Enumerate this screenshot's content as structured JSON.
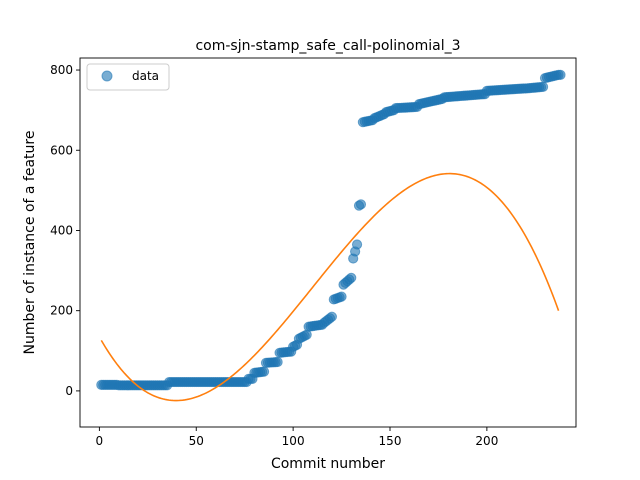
{
  "chart_data": {
    "type": "scatter",
    "title": "com-sjn-stamp_safe_call-polinomial_3",
    "xlabel": "Commit number",
    "ylabel": "Number of instance of a feature",
    "xlim": [
      -10,
      246
    ],
    "ylim": [
      -90,
      830
    ],
    "xticks": [
      0,
      50,
      100,
      150,
      200
    ],
    "yticks": [
      0,
      200,
      400,
      600,
      800
    ],
    "legend_position": "top-left",
    "grid": false,
    "colors": {
      "data": "#1f77b4",
      "fit": "#ff7f0e"
    },
    "series": [
      {
        "name": "data",
        "kind": "markers",
        "segments": [
          [
            1,
            10,
            15,
            15
          ],
          [
            10,
            36,
            14,
            14
          ],
          [
            36,
            77,
            22,
            22
          ],
          [
            77,
            80,
            30,
            30
          ],
          [
            80,
            86,
            45,
            48
          ],
          [
            86,
            93,
            70,
            72
          ],
          [
            93,
            100,
            95,
            98
          ],
          [
            100,
            103,
            110,
            115
          ],
          [
            103,
            108,
            130,
            140
          ],
          [
            108,
            116,
            160,
            165
          ],
          [
            116,
            121,
            170,
            185
          ],
          [
            121,
            126,
            228,
            235
          ],
          [
            126,
            131,
            265,
            282
          ],
          [
            131,
            134,
            330,
            365
          ],
          [
            134,
            136,
            462,
            465
          ],
          [
            136,
            142,
            670,
            675
          ],
          [
            142,
            148,
            680,
            690
          ],
          [
            148,
            153,
            695,
            700
          ],
          [
            153,
            165,
            705,
            708
          ],
          [
            165,
            178,
            715,
            728
          ],
          [
            178,
            200,
            732,
            740
          ],
          [
            200,
            220,
            748,
            754
          ],
          [
            220,
            230,
            754,
            758
          ],
          [
            230,
            238,
            780,
            788
          ]
        ]
      },
      {
        "name": "",
        "kind": "line",
        "polynomial": [
          134.56,
          -8.6436,
          0.13306,
          -0.00040263
        ],
        "x_range": [
          1,
          237
        ]
      }
    ]
  }
}
